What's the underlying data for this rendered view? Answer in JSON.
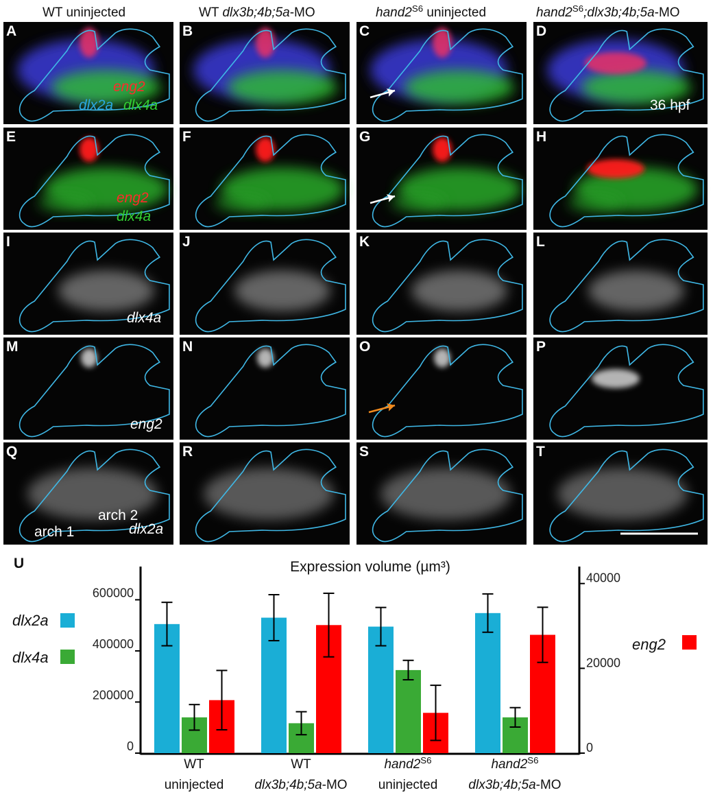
{
  "headers": [
    [
      {
        "text": "WT uninjected"
      }
    ],
    [
      {
        "text": "WT "
      },
      {
        "text": "dlx3b;4b;5a",
        "italic": true
      },
      {
        "text": "-MO"
      }
    ],
    [
      {
        "text": "hand2",
        "italic": true
      },
      {
        "text": "S6",
        "sup": true
      },
      {
        "text": " uninjected"
      }
    ],
    [
      {
        "text": "hand2",
        "italic": true
      },
      {
        "text": "S6",
        "sup": true
      },
      {
        "text": ";dlx3b;4b;5a",
        "italic": true
      },
      {
        "text": "-MO"
      }
    ]
  ],
  "panels": [
    {
      "letter": "A",
      "labels": [
        {
          "text": "eng2",
          "color": "#ff2a2a",
          "italic": true
        },
        {
          "text": "dlx2a",
          "color": "#2aa8e0",
          "italic": true
        },
        {
          "text": "dlx4a",
          "color": "#33d033",
          "italic": true
        }
      ]
    },
    {
      "letter": "B",
      "labels": []
    },
    {
      "letter": "C",
      "labels": []
    },
    {
      "letter": "D",
      "labels": [
        {
          "text": "36 hpf",
          "color": "#ffffff",
          "italic": false
        }
      ]
    },
    {
      "letter": "E",
      "labels": [
        {
          "text": "eng2",
          "color": "#ff2a2a",
          "italic": true
        },
        {
          "text": "dlx4a",
          "color": "#33d033",
          "italic": true
        }
      ]
    },
    {
      "letter": "F",
      "labels": []
    },
    {
      "letter": "G",
      "labels": []
    },
    {
      "letter": "H",
      "labels": []
    },
    {
      "letter": "I",
      "labels": [
        {
          "text": "dlx4a",
          "color": "#ffffff",
          "italic": true
        }
      ]
    },
    {
      "letter": "J",
      "labels": []
    },
    {
      "letter": "K",
      "labels": []
    },
    {
      "letter": "L",
      "labels": []
    },
    {
      "letter": "M",
      "labels": [
        {
          "text": "eng2",
          "color": "#ffffff",
          "italic": true
        }
      ]
    },
    {
      "letter": "N",
      "labels": []
    },
    {
      "letter": "O",
      "labels": []
    },
    {
      "letter": "P",
      "labels": []
    },
    {
      "letter": "Q",
      "labels": [
        {
          "text": "arch 1",
          "color": "#ffffff",
          "italic": false
        },
        {
          "text": "arch 2",
          "color": "#ffffff",
          "italic": false
        },
        {
          "text": "dlx2a",
          "color": "#ffffff",
          "italic": true
        }
      ]
    },
    {
      "letter": "R",
      "labels": []
    },
    {
      "letter": "S",
      "labels": []
    },
    {
      "letter": "T",
      "labels": []
    }
  ],
  "chart_data": {
    "type": "bar",
    "panel_label": "U",
    "title": "Expression volume (µm³)",
    "categories": [
      [
        [
          {
            "text": "WT"
          }
        ],
        [
          {
            "text": "uninjected"
          }
        ]
      ],
      [
        [
          {
            "text": "WT"
          }
        ],
        [
          {
            "text": "dlx3b;4b;5a",
            "italic": true
          },
          {
            "text": "-MO"
          }
        ]
      ],
      [
        [
          {
            "text": "hand2",
            "italic": true
          },
          {
            "text": "S6",
            "sup": true
          }
        ],
        [
          {
            "text": "uninjected"
          }
        ]
      ],
      [
        [
          {
            "text": "hand2",
            "italic": true
          },
          {
            "text": "S6",
            "sup": true
          }
        ],
        [
          {
            "text": "dlx3b;4b;5a",
            "italic": true
          },
          {
            "text": "-MO"
          }
        ]
      ]
    ],
    "series": [
      {
        "name": "dlx2a",
        "color": "#1aaed6",
        "values": [
          505000,
          530000,
          495000,
          548000
        ],
        "errors": [
          85000,
          90000,
          75000,
          75000
        ]
      },
      {
        "name": "dlx4a",
        "color": "#3aaa35",
        "values": [
          140000,
          117000,
          325000,
          140000
        ],
        "errors": [
          50000,
          45000,
          38000,
          38000
        ]
      },
      {
        "name": "eng2",
        "color": "#ff0000",
        "axis": "y2",
        "values": [
          12500,
          30200,
          9500,
          27900
        ],
        "errors": [
          7000,
          7500,
          6500,
          6500
        ]
      }
    ],
    "ylim": [
      0,
      730000
    ],
    "yticks": [
      0,
      200000,
      400000,
      600000
    ],
    "y2lim": [
      0,
      44000
    ],
    "y2ticks": [
      0,
      20000,
      40000
    ]
  }
}
